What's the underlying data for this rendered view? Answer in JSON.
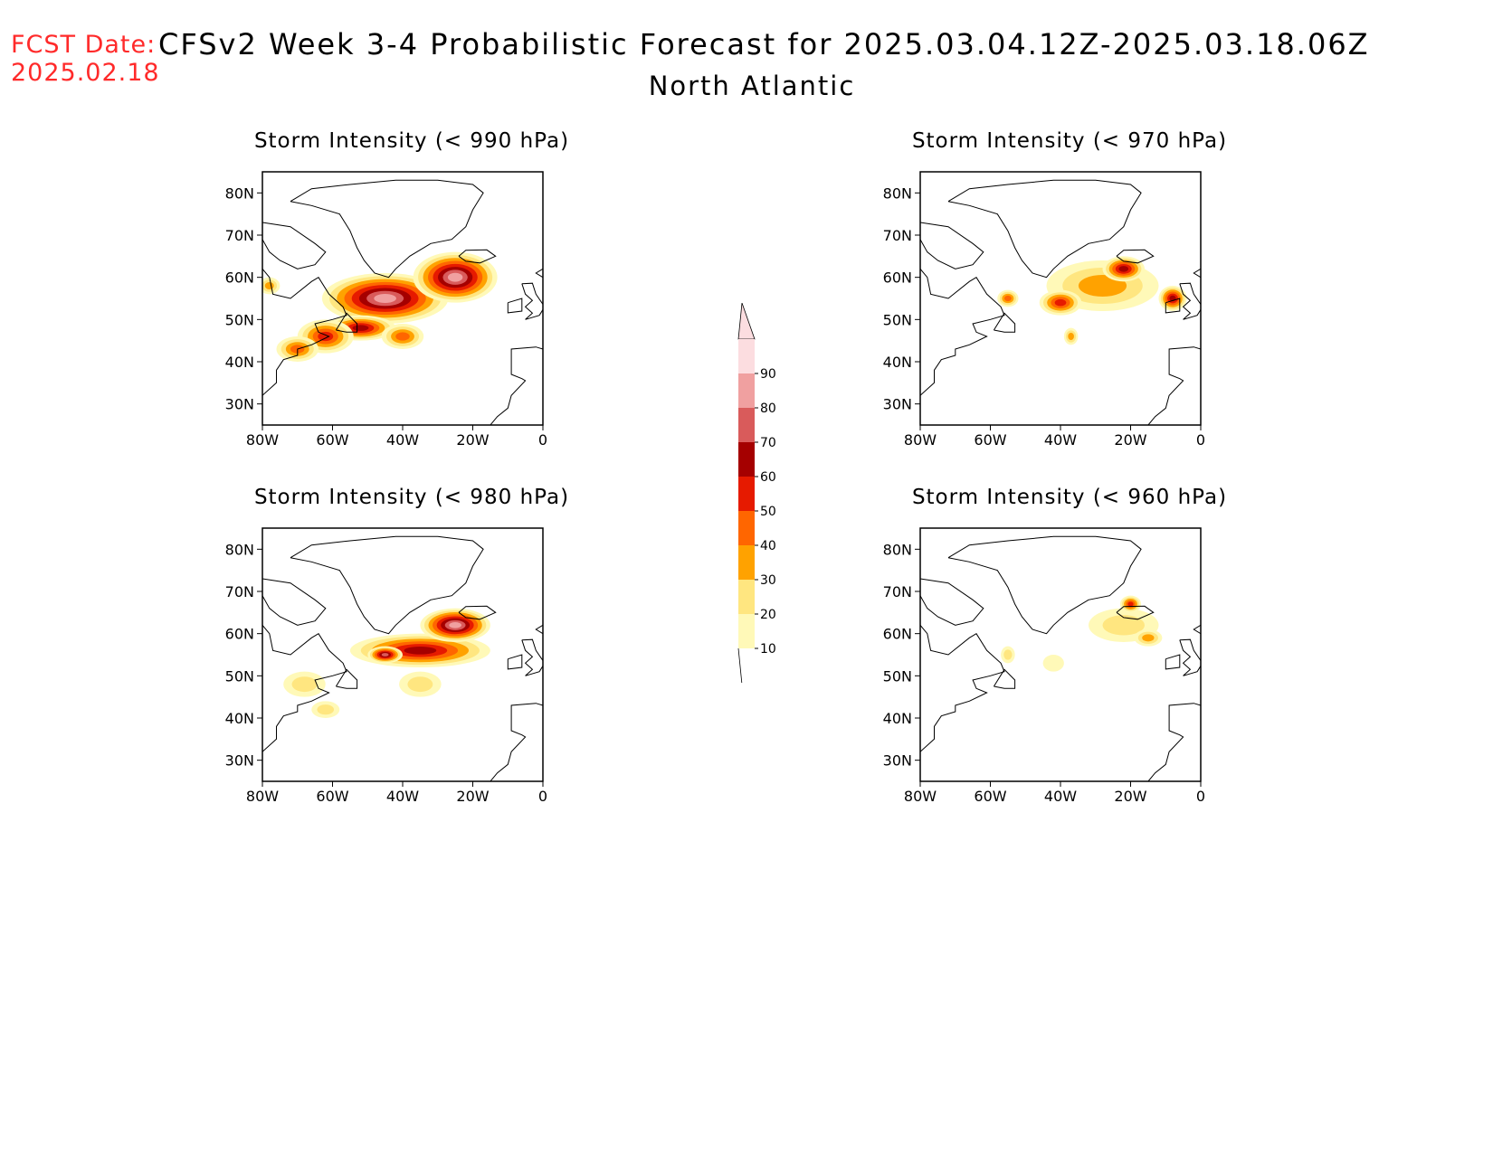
{
  "header": {
    "fcst_label": "FCST Date:",
    "fcst_date": "2025.02.18",
    "title": "CFSv2 Week 3-4 Probabilistic Forecast for 2025.03.04.12Z-2025.03.18.06Z",
    "region": "North Atlantic"
  },
  "axes": {
    "lat_labels": [
      "80N",
      "70N",
      "60N",
      "50N",
      "40N",
      "30N"
    ],
    "lon_labels": [
      "80W",
      "60W",
      "40W",
      "20W",
      "0"
    ]
  },
  "colorbar": {
    "ticks": [
      "10",
      "20",
      "30",
      "40",
      "50",
      "60",
      "70",
      "80",
      "90"
    ],
    "colors": [
      "#fff9b8",
      "#ffe680",
      "#ffa200",
      "#ff6600",
      "#e61a00",
      "#a50000",
      "#d95b5b",
      "#f0a0a0",
      "#fcdde0"
    ]
  },
  "panels": [
    {
      "title": "Storm Intensity (< 990 hPa)",
      "blobs": [
        {
          "lon": -45,
          "lat": 55,
          "rlon": 18,
          "rlat": 6,
          "level": 8
        },
        {
          "lon": -25,
          "lat": 60,
          "rlon": 12,
          "rlat": 6,
          "level": 8
        },
        {
          "lon": -52,
          "lat": 48,
          "rlon": 10,
          "rlat": 3,
          "level": 6
        },
        {
          "lon": -62,
          "lat": 46,
          "rlon": 8,
          "rlat": 4,
          "level": 5
        },
        {
          "lon": -70,
          "lat": 43,
          "rlon": 6,
          "rlat": 3,
          "level": 4
        },
        {
          "lon": -40,
          "lat": 46,
          "rlon": 6,
          "rlat": 3,
          "level": 4
        },
        {
          "lon": -78,
          "lat": 58,
          "rlon": 3,
          "rlat": 2,
          "level": 3
        }
      ]
    },
    {
      "title": "Storm Intensity (< 970 hPa)",
      "blobs": [
        {
          "lon": -28,
          "lat": 58,
          "rlon": 16,
          "rlat": 6,
          "level": 3
        },
        {
          "lon": -22,
          "lat": 62,
          "rlon": 6,
          "rlat": 3,
          "level": 6
        },
        {
          "lon": -40,
          "lat": 54,
          "rlon": 6,
          "rlat": 3,
          "level": 5
        },
        {
          "lon": -8,
          "lat": 55,
          "rlon": 4,
          "rlat": 3,
          "level": 6
        },
        {
          "lon": -55,
          "lat": 55,
          "rlon": 3,
          "rlat": 2,
          "level": 4
        },
        {
          "lon": -37,
          "lat": 46,
          "rlon": 2,
          "rlat": 2,
          "level": 3
        }
      ]
    },
    {
      "title": "Storm Intensity (< 980 hPa)",
      "blobs": [
        {
          "lon": -35,
          "lat": 56,
          "rlon": 20,
          "rlat": 4,
          "level": 6
        },
        {
          "lon": -25,
          "lat": 62,
          "rlon": 10,
          "rlat": 4,
          "level": 8
        },
        {
          "lon": -45,
          "lat": 55,
          "rlon": 5,
          "rlat": 2,
          "level": 7
        },
        {
          "lon": -35,
          "lat": 48,
          "rlon": 6,
          "rlat": 3,
          "level": 2
        },
        {
          "lon": -68,
          "lat": 48,
          "rlon": 6,
          "rlat": 3,
          "level": 2
        },
        {
          "lon": -62,
          "lat": 42,
          "rlon": 4,
          "rlat": 2,
          "level": 2
        }
      ]
    },
    {
      "title": "Storm Intensity (< 960 hPa)",
      "blobs": [
        {
          "lon": -22,
          "lat": 62,
          "rlon": 10,
          "rlat": 4,
          "level": 2
        },
        {
          "lon": -20,
          "lat": 67,
          "rlon": 3,
          "rlat": 2,
          "level": 5
        },
        {
          "lon": -15,
          "lat": 59,
          "rlon": 4,
          "rlat": 2,
          "level": 3
        },
        {
          "lon": -55,
          "lat": 55,
          "rlon": 2,
          "rlat": 2,
          "level": 2
        },
        {
          "lon": -42,
          "lat": 53,
          "rlon": 3,
          "rlat": 2,
          "level": 1
        }
      ]
    }
  ]
}
